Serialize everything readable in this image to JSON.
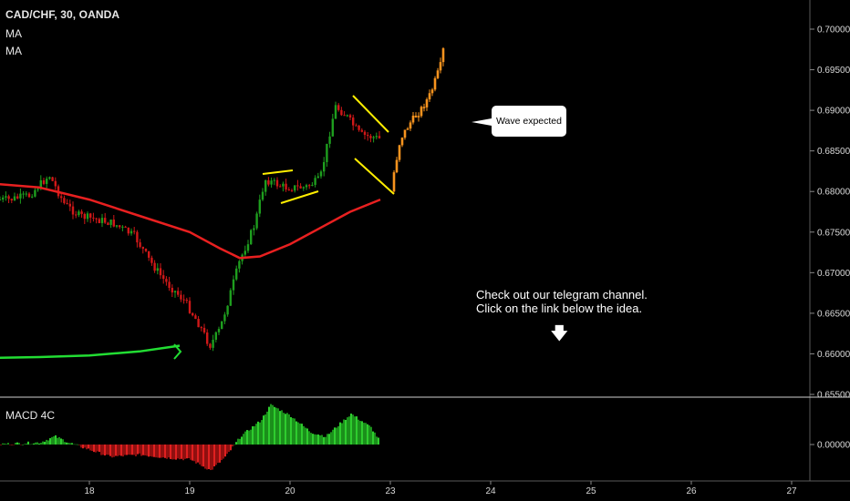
{
  "header": {
    "symbol": "CAD/CHF, 30, OANDA",
    "ma1": "MA",
    "ma2": "MA",
    "macd": "MACD 4C"
  },
  "annotations": {
    "callout": "Wave expected",
    "note_line1": "Check out our telegram channel.",
    "note_line2": "Click on the link below the idea.",
    "arrow_icon": "down-arrow"
  },
  "colors": {
    "up": "#1e9e1e",
    "down": "#d01818",
    "ma_red": "#e82020",
    "ma_green": "#22dd33",
    "projection": "#f7931e",
    "pattern": "#ffee00"
  },
  "chart_data": [
    {
      "type": "candlestick",
      "title": "CAD/CHF, 30, OANDA",
      "x_ticks": [
        "18",
        "19",
        "20",
        "23",
        "24",
        "25",
        "26",
        "27"
      ],
      "y_ticks": [
        0.655,
        0.66,
        0.665,
        0.67,
        0.675,
        0.68,
        0.685,
        0.69,
        0.695,
        0.7
      ],
      "ylim": [
        0.6545,
        0.7025
      ],
      "series": [
        {
          "name": "price",
          "x": [
            17.2,
            17.4,
            17.6,
            17.75,
            17.9,
            18.1,
            18.25,
            18.45,
            18.6,
            18.75,
            18.95,
            19.1,
            19.2,
            19.3,
            19.5,
            19.65,
            19.75,
            19.95,
            20.15,
            20.3,
            20.45,
            20.55,
            20.7,
            20.9
          ],
          "y": [
            0.679,
            0.6795,
            0.682,
            0.6785,
            0.677,
            0.6765,
            0.676,
            0.6745,
            0.6715,
            0.669,
            0.6665,
            0.6635,
            0.661,
            0.663,
            0.6715,
            0.676,
            0.6815,
            0.6805,
            0.6805,
            0.6815,
            0.6905,
            0.6895,
            0.687,
            0.6865
          ]
        },
        {
          "name": "MA",
          "x": [
            17.0,
            17.5,
            18.0,
            18.5,
            19.0,
            19.3,
            19.5,
            19.7,
            20.0,
            20.3,
            20.6,
            20.9
          ],
          "y": [
            0.681,
            0.6805,
            0.679,
            0.677,
            0.675,
            0.673,
            0.6718,
            0.672,
            0.6735,
            0.6755,
            0.6775,
            0.679
          ]
        },
        {
          "name": "MA",
          "x": [
            17.0,
            17.5,
            18.0,
            18.5,
            18.9
          ],
          "y": [
            0.6595,
            0.6596,
            0.6598,
            0.6603,
            0.661
          ]
        },
        {
          "name": "projection",
          "x": [
            23.0,
            23.1,
            23.2,
            23.3,
            23.4,
            23.5,
            23.55
          ],
          "y": [
            0.68,
            0.6865,
            0.6885,
            0.69,
            0.692,
            0.6955,
            0.699
          ]
        }
      ]
    },
    {
      "type": "bar",
      "title": "MACD 4C",
      "y_ticks": [
        0.0
      ],
      "x": [
        17.0,
        17.5,
        17.65,
        17.8,
        18.0,
        18.2,
        18.5,
        18.8,
        19.0,
        19.2,
        19.35,
        19.5,
        19.7,
        19.8,
        20.0,
        20.2,
        20.35,
        20.6,
        20.8,
        20.9
      ],
      "values": [
        0.0,
        0.0003,
        0.0012,
        0.0002,
        -0.0008,
        -0.0018,
        -0.0015,
        -0.002,
        -0.0022,
        -0.0038,
        -0.0018,
        0.0012,
        0.0035,
        0.0058,
        0.0042,
        0.0018,
        0.0012,
        0.0045,
        0.0025,
        0.0002
      ]
    }
  ]
}
